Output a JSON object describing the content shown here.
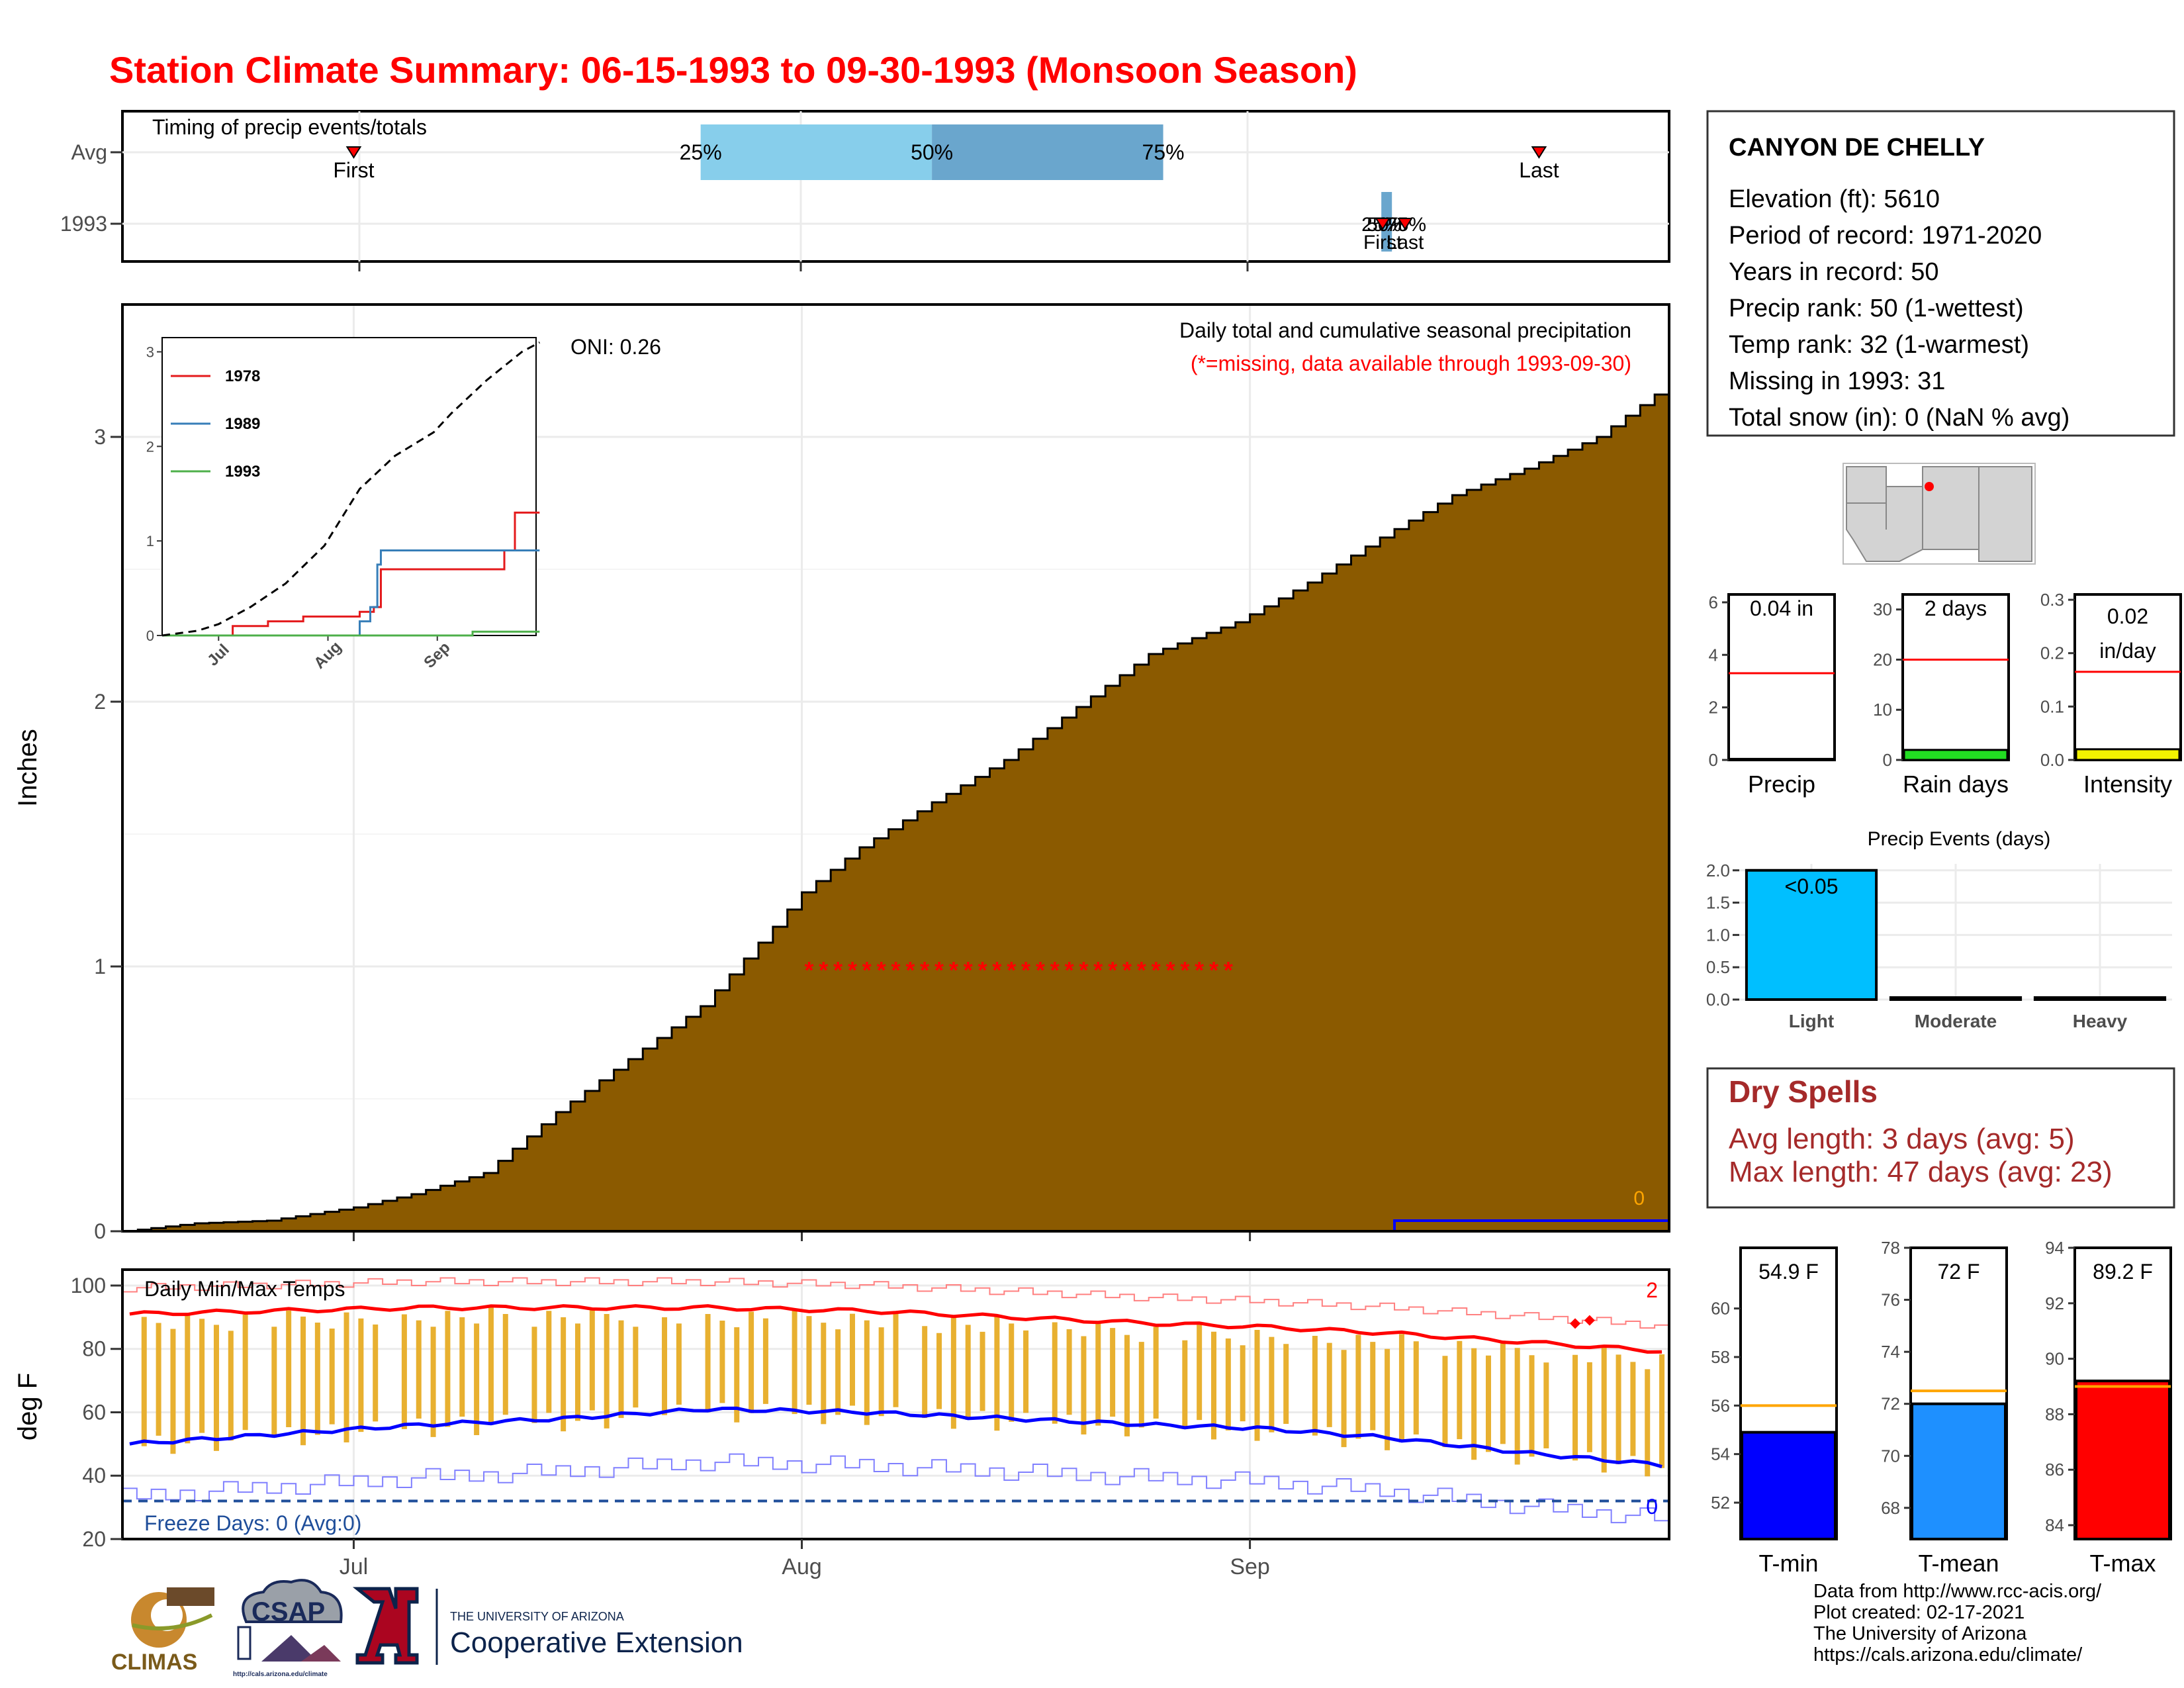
{
  "title": "Station Climate Summary: 06-15-1993 to 09-30-1993 (Monsoon Season)",
  "colors": {
    "title": "#ff0000",
    "precip_fill": "#8b5a00",
    "tmax_avg": "#ff0000",
    "tmin_avg": "#0000ff",
    "temp_bars": "#e8b030",
    "freeze": "#1f4e9a",
    "dry_spells": "#a52a2a"
  },
  "timing": {
    "title": "Timing of precip events/totals",
    "rows": [
      "Avg",
      "1993"
    ],
    "avg_labels": {
      "first": "First",
      "last": "Last",
      "p25": "25%",
      "p50": "50%",
      "p75": "75%"
    },
    "yr_labels": {
      "first": "First",
      "last": "Last",
      "p25": "25%",
      "p50": "50%",
      "p75": "75%"
    },
    "avg_dates": {
      "first": "1993-07-01",
      "p25": "1993-07-25",
      "p50": "1993-08-10",
      "p75": "1993-08-26",
      "last": "1993-09-21"
    },
    "yr_dates": {
      "first": "1993-09-10",
      "p25": "1993-09-10",
      "p50": "1993-09-10",
      "p75": "1993-09-11",
      "last": "1993-09-11"
    }
  },
  "chart_data": [
    {
      "type": "area",
      "title": "Daily total and cumulative seasonal precipitation",
      "subtitle": "(*=missing, data available through 1993-09-30)",
      "oni": "ONI: 0.26",
      "ylabel": "Inches",
      "x_ticks": [
        "Jul",
        "Aug",
        "Sep"
      ],
      "x_tick_dates": [
        "1993-07-01",
        "1993-08-01",
        "1993-09-01"
      ],
      "x_range": [
        "1993-06-15",
        "1993-09-30"
      ],
      "ylim": [
        0,
        3.5
      ],
      "y_ticks": [
        0,
        1,
        2,
        3
      ],
      "avg_cumulative": {
        "start": "1993-06-15",
        "daily_interp_points": [
          [
            "1993-06-15",
            0
          ],
          [
            "1993-06-20",
            0.03
          ],
          [
            "1993-06-25",
            0.04
          ],
          [
            "1993-07-01",
            0.09
          ],
          [
            "1993-07-05",
            0.14
          ],
          [
            "1993-07-10",
            0.22
          ],
          [
            "1993-07-15",
            0.45
          ],
          [
            "1993-07-20",
            0.65
          ],
          [
            "1993-07-25",
            0.85
          ],
          [
            "1993-07-30",
            1.15
          ],
          [
            "1993-08-01",
            1.28
          ],
          [
            "1993-08-05",
            1.45
          ],
          [
            "1993-08-10",
            1.62
          ],
          [
            "1993-08-15",
            1.78
          ],
          [
            "1993-08-20",
            1.98
          ],
          [
            "1993-08-25",
            2.18
          ],
          [
            "1993-08-31",
            2.3
          ],
          [
            "1993-09-05",
            2.45
          ],
          [
            "1993-09-10",
            2.62
          ],
          [
            "1993-09-15",
            2.78
          ],
          [
            "1993-09-20",
            2.88
          ],
          [
            "1993-09-25",
            3.0
          ],
          [
            "1993-09-30",
            3.2
          ]
        ]
      },
      "year_cumulative": [
        [
          "1993-09-10",
          0
        ],
        [
          "1993-09-11",
          0.04
        ],
        [
          "1993-09-30",
          0.04
        ]
      ],
      "year_total_label": "0",
      "missing_marker": "*",
      "missing_range": [
        "1993-08-01",
        "1993-08-30"
      ],
      "missing_y": 1.0
    },
    {
      "type": "line",
      "title": "",
      "inset": true,
      "x_ticks": [
        "Jul",
        "Aug",
        "Sep"
      ],
      "ylim": [
        0,
        3.1
      ],
      "y_ticks": [
        0,
        1,
        2,
        3
      ],
      "series": [
        {
          "name": "1978",
          "color": "#e41a1c",
          "steps": [
            [
              "06-15",
              0
            ],
            [
              "07-05",
              0.1
            ],
            [
              "07-15",
              0.15
            ],
            [
              "07-25",
              0.2
            ],
            [
              "08-10",
              0.25
            ],
            [
              "08-14",
              0.3
            ],
            [
              "08-16",
              0.7
            ],
            [
              "09-20",
              0.9
            ],
            [
              "09-23",
              1.3
            ],
            [
              "09-30",
              1.3
            ]
          ]
        },
        {
          "name": "1989",
          "color": "#377eb8",
          "steps": [
            [
              "06-15",
              0
            ],
            [
              "08-01",
              0
            ],
            [
              "08-10",
              0.15
            ],
            [
              "08-13",
              0.3
            ],
            [
              "08-15",
              0.75
            ],
            [
              "08-16",
              0.9
            ],
            [
              "09-30",
              0.9
            ]
          ]
        },
        {
          "name": "1993",
          "color": "#4daf4a",
          "steps": [
            [
              "06-15",
              0
            ],
            [
              "09-10",
              0
            ],
            [
              "09-11",
              0.04
            ],
            [
              "09-30",
              0.04
            ]
          ]
        },
        {
          "name": "",
          "color": "#000000",
          "dashed": true,
          "points": [
            [
              "06-15",
              0
            ],
            [
              "06-25",
              0.05
            ],
            [
              "07-01",
              0.12
            ],
            [
              "07-10",
              0.3
            ],
            [
              "07-20",
              0.55
            ],
            [
              "07-31",
              0.95
            ],
            [
              "08-10",
              1.55
            ],
            [
              "08-20",
              1.9
            ],
            [
              "08-31",
              2.15
            ],
            [
              "09-05",
              2.35
            ],
            [
              "09-15",
              2.7
            ],
            [
              "09-25",
              3.0
            ],
            [
              "09-30",
              3.1
            ]
          ]
        }
      ]
    },
    {
      "type": "line",
      "title": "Daily Min/Max Temps",
      "ylabel": "deg F",
      "x_ticks": [
        "Jul",
        "Aug",
        "Sep"
      ],
      "ylim": [
        20,
        105
      ],
      "y_ticks": [
        20,
        40,
        60,
        80,
        100
      ],
      "freeze_label": "Freeze Days: 0 (Avg:0)",
      "freeze_line": 32,
      "record_high_count": "2",
      "record_low_count": "0",
      "avg_tmax": [
        [
          "06-15",
          91
        ],
        [
          "06-25",
          92
        ],
        [
          "07-05",
          93
        ],
        [
          "07-15",
          93
        ],
        [
          "07-25",
          93
        ],
        [
          "08-05",
          92
        ],
        [
          "08-15",
          90
        ],
        [
          "08-25",
          88
        ],
        [
          "09-01",
          87
        ],
        [
          "09-10",
          85
        ],
        [
          "09-20",
          82
        ],
        [
          "09-30",
          79
        ]
      ],
      "avg_tmin": [
        [
          "06-15",
          50
        ],
        [
          "06-25",
          53
        ],
        [
          "07-05",
          56
        ],
        [
          "07-15",
          58
        ],
        [
          "07-25",
          61
        ],
        [
          "08-05",
          60
        ],
        [
          "08-15",
          58
        ],
        [
          "08-25",
          56
        ],
        [
          "09-01",
          55
        ],
        [
          "09-10",
          52
        ],
        [
          "09-20",
          47
        ],
        [
          "09-30",
          43
        ]
      ],
      "record_max_points": [
        [
          "09-23",
          88
        ],
        [
          "09-24",
          89
        ]
      ]
    },
    {
      "type": "bar",
      "title": "Precip Events (days)",
      "categories": [
        "Light",
        "Moderate",
        "Heavy"
      ],
      "values": [
        2,
        0,
        0
      ],
      "bar_labels": [
        "<0.05",
        "",
        ""
      ],
      "ylim": [
        0,
        2.1
      ],
      "y_ticks": [
        "0.0",
        "0.5",
        "1.0",
        "1.5",
        "2.0"
      ]
    }
  ],
  "station": {
    "name": "CANYON DE CHELLY",
    "lines": [
      "Elevation (ft): 5610",
      "Period of record: 1971-2020",
      "Years in record: 50",
      "Precip rank: 50 (1-wettest)",
      "Temp rank: 32 (1-warmest)",
      "Missing in 1993: 31",
      "Total snow (in): 0 (NaN % avg)"
    ]
  },
  "mini_bars": [
    {
      "label": "Precip",
      "value_text": "0.04 in",
      "value": 0.04,
      "avg": 3.3,
      "ylim": [
        0,
        6.3
      ],
      "ticks": [
        0,
        2,
        4,
        6
      ],
      "color": "#00aa00"
    },
    {
      "label": "Rain days",
      "value_text": "2 days",
      "value": 2,
      "avg": 20,
      "ylim": [
        0,
        33
      ],
      "ticks": [
        0,
        10,
        20,
        30
      ],
      "color": "#22dd22"
    },
    {
      "label": "Intensity",
      "value_text": "0.02 in/day",
      "value": 0.02,
      "avg": 0.165,
      "ylim": [
        0,
        0.31
      ],
      "ticks": [
        "0.0",
        "0.1",
        "0.2",
        "0.3"
      ],
      "color": "#f2f200"
    }
  ],
  "dry_spells": {
    "title": "Dry Spells",
    "avg_line": "Avg length: 3 days (avg: 5)",
    "max_line": "Max length: 47 days (avg: 23)"
  },
  "temp_bars": [
    {
      "label": "T-min",
      "value_text": "54.9 F",
      "value": 54.9,
      "avg": 56.0,
      "ylim": [
        50.5,
        62.5
      ],
      "ticks": [
        52,
        54,
        56,
        58,
        60
      ],
      "color": "#0000ff"
    },
    {
      "label": "T-mean",
      "value_text": "72 F",
      "value": 72.0,
      "avg": 72.5,
      "ylim": [
        66.8,
        78
      ],
      "ticks": [
        68,
        70,
        72,
        74,
        76,
        78
      ],
      "color": "#1e90ff"
    },
    {
      "label": "T-max",
      "value_text": "89.2 F",
      "value": 89.2,
      "avg": 89.0,
      "ylim": [
        83.5,
        94
      ],
      "ticks": [
        84,
        86,
        88,
        90,
        92,
        94
      ],
      "color": "#ff0000"
    }
  ],
  "logos": {
    "climas": "CLIMAS",
    "csap": "CSAP",
    "ua_small": "THE UNIVERSITY OF ARIZONA",
    "ua_ext": "Cooperative Extension",
    "csap_url": "http://cals.arizona.edu/climate"
  },
  "credits": [
    "Data from http://www.rcc-acis.org/",
    "Plot created: 02-17-2021",
    "The University of Arizona",
    "https://cals.arizona.edu/climate/"
  ]
}
